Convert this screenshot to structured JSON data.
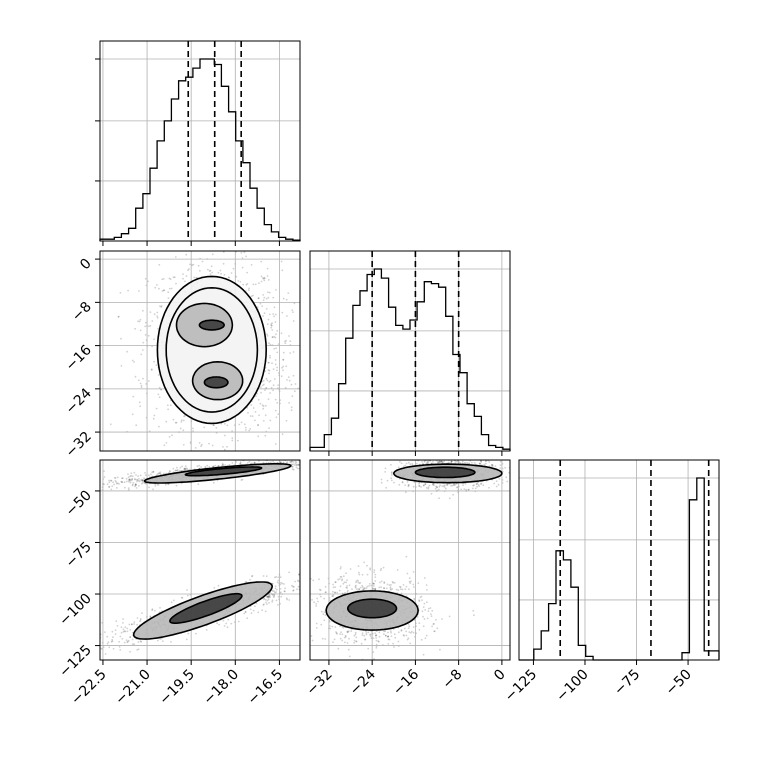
{
  "chart_data": {
    "type": "corner",
    "parameters": [
      {
        "id": "p0",
        "range": [
          -22.6,
          -15.8
        ],
        "ticks": [
          -22.5,
          -21.0,
          -19.5,
          -18.0,
          -16.5
        ],
        "tick_labels": [
          "−22.5",
          "−21.0",
          "−19.5",
          "−18.0",
          "−16.5"
        ],
        "quantiles": [
          -19.6,
          -18.7,
          -17.8
        ]
      },
      {
        "id": "p1",
        "range": [
          -35.5,
          1.5
        ],
        "ticks": [
          -32,
          -24,
          -16,
          -8,
          0
        ],
        "tick_labels": [
          "−32",
          "−24",
          "−16",
          "−8",
          "0"
        ],
        "quantiles": [
          -24.0,
          -16.0,
          -8.0
        ]
      },
      {
        "id": "p2",
        "range": [
          -132,
          -35
        ],
        "ticks": [
          -125,
          -100,
          -75,
          -50
        ],
        "tick_labels": [
          "−125",
          "−100",
          "−75",
          "−50"
        ],
        "quantiles": [
          -112,
          -68,
          -40
        ]
      }
    ],
    "histograms": [
      {
        "param": "p0",
        "counts": [
          0.01,
          0.01,
          0.02,
          0.04,
          0.07,
          0.18,
          0.26,
          0.4,
          0.55,
          0.66,
          0.78,
          0.88,
          0.9,
          0.95,
          1.0,
          1.0,
          0.97,
          0.85,
          0.71,
          0.55,
          0.43,
          0.29,
          0.18,
          0.09,
          0.05,
          0.02,
          0.01,
          0.005
        ]
      },
      {
        "param": "p1",
        "counts": [
          0.02,
          0.02,
          0.09,
          0.18,
          0.37,
          0.62,
          0.8,
          0.88,
          0.97,
          1.0,
          0.95,
          0.79,
          0.69,
          0.67,
          0.72,
          0.82,
          0.93,
          0.92,
          0.9,
          0.74,
          0.53,
          0.43,
          0.26,
          0.19,
          0.09,
          0.03,
          0.02,
          0.01
        ]
      },
      {
        "param": "p2",
        "counts": [
          0,
          0,
          0.06,
          0.16,
          0.31,
          0.6,
          0.55,
          0.4,
          0.08,
          0.02,
          0,
          0,
          0,
          0,
          0,
          0,
          0,
          0,
          0,
          0,
          0,
          0,
          0.04,
          0.88,
          1.0,
          0.05,
          0.05
        ]
      }
    ],
    "scatter_panels": [
      {
        "x": "p0",
        "y": "p1",
        "modes": [
          {
            "mean": [
              -18.7,
              -12
            ],
            "sd": [
              0.75,
              3.8
            ],
            "corr": 0.0,
            "weight": 1
          },
          {
            "mean": [
              -18.5,
              -22
            ],
            "sd": [
              0.75,
              3.8
            ],
            "corr": 0.0,
            "weight": 1
          }
        ]
      },
      {
        "x": "p0",
        "y": "p2",
        "modes": [
          {
            "mean": [
              -18.9,
              -41
            ],
            "sd": [
              1.2,
              2.2
            ],
            "corr": 0.85,
            "weight": 1
          },
          {
            "mean": [
              -18.9,
              -108
            ],
            "sd": [
              1.2,
              5.5
            ],
            "corr": 0.88,
            "weight": 1
          }
        ]
      },
      {
        "x": "p1",
        "y": "p2",
        "modes": [
          {
            "mean": [
              -10,
              -41
            ],
            "sd": [
              3.2,
              2.5
            ],
            "corr": 0.1,
            "weight": 1
          },
          {
            "mean": [
              -24,
              -108
            ],
            "sd": [
              3.5,
              5.5
            ],
            "corr": -0.1,
            "weight": 1
          }
        ]
      }
    ],
    "contours": [
      {
        "x": "p0",
        "y": "p1",
        "ellipses": [
          {
            "cx": -19.05,
            "cy": -12.2,
            "rx": 0.95,
            "ry": 4.0,
            "rot": 0
          },
          {
            "cx": -18.6,
            "cy": -22.5,
            "rx": 0.85,
            "ry": 3.5,
            "rot": 0
          },
          {
            "cx": -18.8,
            "cy": -12.2,
            "rx": 0.42,
            "ry": 0.9,
            "rot": 0
          },
          {
            "cx": -18.65,
            "cy": -22.8,
            "rx": 0.4,
            "ry": 1.0,
            "rot": 0
          },
          {
            "cx": -18.8,
            "cy": -16.8,
            "rx": 1.55,
            "ry": 11.5,
            "rot": 0
          },
          {
            "cx": -18.8,
            "cy": -16.8,
            "rx": 1.85,
            "ry": 13.6,
            "rot": 0
          }
        ]
      },
      {
        "x": "p0",
        "y": "p2",
        "ellipses": [
          {
            "cx": -18.6,
            "cy": -41.5,
            "rx": 2.5,
            "ry": 2.8,
            "rot": -6
          },
          {
            "cx": -18.4,
            "cy": -40.5,
            "rx": 1.3,
            "ry": 1.4,
            "rot": -5
          },
          {
            "cx": -19.1,
            "cy": -108,
            "rx": 2.5,
            "ry": 7,
            "rot": -20
          },
          {
            "cx": -19.0,
            "cy": -107,
            "rx": 1.3,
            "ry": 3.5,
            "rot": -20
          }
        ]
      },
      {
        "x": "p1",
        "y": "p2",
        "ellipses": [
          {
            "cx": -10,
            "cy": -41.5,
            "rx": 10,
            "ry": 4.5,
            "rot": 0
          },
          {
            "cx": -10.5,
            "cy": -41,
            "rx": 5.5,
            "ry": 2.5,
            "rot": 0
          },
          {
            "cx": -24,
            "cy": -108,
            "rx": 8.5,
            "ry": 9.5,
            "rot": 0
          },
          {
            "cx": -24,
            "cy": -107,
            "rx": 4.5,
            "ry": 4.5,
            "rot": 0
          }
        ]
      }
    ],
    "grid": true,
    "colors": {
      "points": "#000000",
      "hist": "#000000",
      "grid": "#b0b0b0",
      "quantile": "#000000"
    }
  }
}
